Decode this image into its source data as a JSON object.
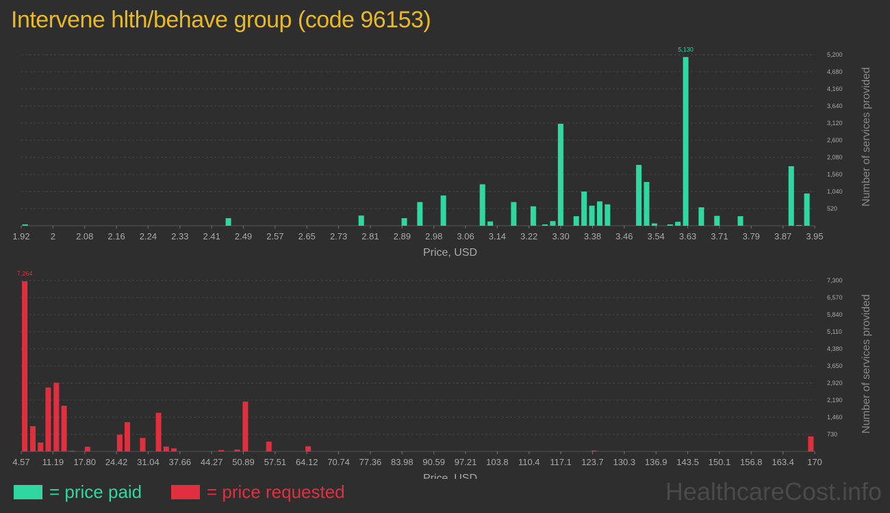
{
  "title": "Intervene hlth/behave group (code 96153)",
  "legend": {
    "paid_label": "= price paid",
    "requested_label": "= price requested"
  },
  "watermark": "HealthcareCost.info",
  "colors": {
    "paid": "#2ed8a0",
    "requested": "#e03040",
    "background": "#2e2e2e",
    "title": "#e8b923"
  },
  "chart_data": [
    {
      "type": "bar",
      "series_name": "price paid",
      "xlabel": "Price, USD",
      "ylabel": "Number of services provided",
      "x_tick_labels": [
        "1.92",
        "2",
        "2.08",
        "2.16",
        "2.24",
        "2.33",
        "2.41",
        "2.49",
        "2.57",
        "2.65",
        "2.73",
        "2.81",
        "2.89",
        "2.98",
        "3.06",
        "3.14",
        "3.22",
        "3.30",
        "3.38",
        "3.46",
        "3.54",
        "3.63",
        "3.71",
        "3.79",
        "3.87",
        "3.95"
      ],
      "y_tick_labels": [
        "520",
        "1,040",
        "1,560",
        "2,080",
        "2,600",
        "3,120",
        "3,640",
        "4,160",
        "4,680",
        "5,200"
      ],
      "ylim": [
        0,
        5200
      ],
      "xlim": [
        1.92,
        3.95
      ],
      "grid": true,
      "max_label": "5,130",
      "points": [
        {
          "x": 1.93,
          "y": 40
        },
        {
          "x": 2.45,
          "y": 230
        },
        {
          "x": 2.79,
          "y": 310
        },
        {
          "x": 2.9,
          "y": 230
        },
        {
          "x": 2.94,
          "y": 720
        },
        {
          "x": 3.0,
          "y": 920
        },
        {
          "x": 3.1,
          "y": 1260
        },
        {
          "x": 3.12,
          "y": 130
        },
        {
          "x": 3.18,
          "y": 720
        },
        {
          "x": 3.23,
          "y": 590
        },
        {
          "x": 3.26,
          "y": 40
        },
        {
          "x": 3.28,
          "y": 140
        },
        {
          "x": 3.3,
          "y": 3100
        },
        {
          "x": 3.34,
          "y": 290
        },
        {
          "x": 3.36,
          "y": 1040
        },
        {
          "x": 3.38,
          "y": 610
        },
        {
          "x": 3.4,
          "y": 740
        },
        {
          "x": 3.42,
          "y": 650
        },
        {
          "x": 3.5,
          "y": 1850
        },
        {
          "x": 3.52,
          "y": 1330
        },
        {
          "x": 3.54,
          "y": 70
        },
        {
          "x": 3.58,
          "y": 40
        },
        {
          "x": 3.6,
          "y": 120
        },
        {
          "x": 3.62,
          "y": 5130
        },
        {
          "x": 3.66,
          "y": 560
        },
        {
          "x": 3.7,
          "y": 300
        },
        {
          "x": 3.76,
          "y": 290
        },
        {
          "x": 3.89,
          "y": 1810
        },
        {
          "x": 3.91,
          "y": 20
        },
        {
          "x": 3.93,
          "y": 980
        }
      ]
    },
    {
      "type": "bar",
      "series_name": "price requested",
      "xlabel": "Price, USD",
      "ylabel": "Number of services provided",
      "x_tick_labels": [
        "4.57",
        "11.19",
        "17.80",
        "24.42",
        "31.04",
        "37.66",
        "44.27",
        "50.89",
        "57.51",
        "64.12",
        "70.74",
        "77.36",
        "83.98",
        "90.59",
        "97.21",
        "103.8",
        "110.4",
        "117.1",
        "123.7",
        "130.3",
        "136.9",
        "143.5",
        "150.1",
        "156.8",
        "163.4",
        "170"
      ],
      "y_tick_labels": [
        "730",
        "1,460",
        "2,190",
        "2,920",
        "3,650",
        "4,380",
        "5,110",
        "5,840",
        "6,570",
        "7,300"
      ],
      "ylim": [
        0,
        7300
      ],
      "xlim": [
        4.57,
        170
      ],
      "grid": true,
      "max_label": "7,264",
      "points": [
        {
          "x": 5.3,
          "y": 7264
        },
        {
          "x": 7.0,
          "y": 1080
        },
        {
          "x": 8.6,
          "y": 380
        },
        {
          "x": 10.2,
          "y": 2730
        },
        {
          "x": 11.9,
          "y": 2930
        },
        {
          "x": 13.5,
          "y": 1950
        },
        {
          "x": 15.1,
          "y": 30
        },
        {
          "x": 18.4,
          "y": 200
        },
        {
          "x": 25.1,
          "y": 720
        },
        {
          "x": 26.7,
          "y": 1250
        },
        {
          "x": 29.9,
          "y": 580
        },
        {
          "x": 33.2,
          "y": 1650
        },
        {
          "x": 34.8,
          "y": 210
        },
        {
          "x": 36.4,
          "y": 130
        },
        {
          "x": 46.3,
          "y": 60
        },
        {
          "x": 49.6,
          "y": 80
        },
        {
          "x": 51.3,
          "y": 2130
        },
        {
          "x": 56.2,
          "y": 420
        },
        {
          "x": 64.4,
          "y": 220
        },
        {
          "x": 124.0,
          "y": 40
        },
        {
          "x": 169.2,
          "y": 640
        }
      ]
    }
  ]
}
